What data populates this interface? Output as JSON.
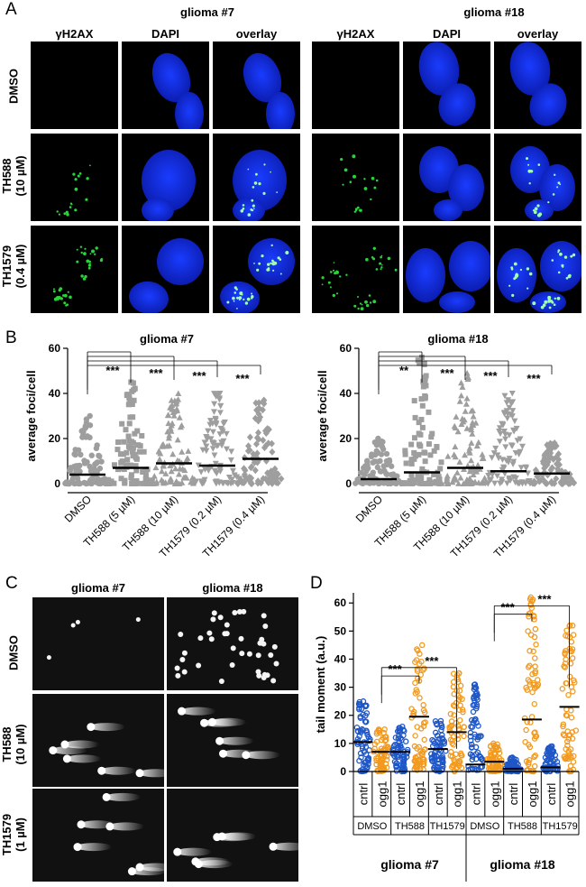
{
  "panel_a": {
    "letter": "A",
    "groups": [
      "glioma #7",
      "glioma #18"
    ],
    "columns": [
      "γH2AX",
      "DAPI",
      "overlay"
    ],
    "rows": [
      {
        "line1": "DMSO",
        "line2": ""
      },
      {
        "line1": "TH588",
        "line2": "(10 µM)"
      },
      {
        "line1": "TH1579",
        "line2": "(0.4 µM)"
      }
    ]
  },
  "panel_b": {
    "letter": "B",
    "charts": [
      {
        "title": "glioma #7",
        "ylabel": "average foci/cell",
        "yticks": [
          "0",
          "20",
          "40",
          "60"
        ],
        "categories": [
          "DMSO",
          "TH588 (5 µM)",
          "TH588 (10 µM)",
          "TH1579 (0.2 µM)",
          "TH1579 (0.4 µM)"
        ],
        "significance": [
          "***",
          "***",
          "***",
          "***"
        ]
      },
      {
        "title": "glioma #18",
        "ylabel": "average foci/cell",
        "yticks": [
          "0",
          "20",
          "40",
          "60"
        ],
        "categories": [
          "DMSO",
          "TH588 (5 µM)",
          "TH588 (10 µM)",
          "TH1579 (0.2 µM)",
          "TH1579 (0.4 µM)"
        ],
        "significance": [
          "**",
          "***",
          "***",
          "***"
        ]
      }
    ]
  },
  "panel_c": {
    "letter": "C",
    "groups": [
      "glioma #7",
      "glioma #18"
    ],
    "rows": [
      {
        "line1": "DMSO",
        "line2": ""
      },
      {
        "line1": "TH588",
        "line2": "(10 µM)"
      },
      {
        "line1": "TH1579",
        "line2": "(1 µM)"
      }
    ]
  },
  "panel_d": {
    "letter": "D",
    "ylabel": "tail moment (a.u.)",
    "yticks": [
      "0",
      "10",
      "20",
      "30",
      "40",
      "50",
      "60"
    ],
    "conditions": [
      "cntrl",
      "ogg1",
      "cntrl",
      "ogg1",
      "cntrl",
      "ogg1",
      "cntrl",
      "ogg1",
      "cntrl",
      "ogg1",
      "cntrl",
      "ogg1"
    ],
    "treatments": [
      "DMSO",
      "TH588",
      "TH1579",
      "DMSO",
      "TH588",
      "TH1579"
    ],
    "groups": [
      "glioma #7",
      "glioma #18"
    ],
    "significance": [
      "***",
      "***",
      "***",
      "***"
    ]
  },
  "chart_data": [
    {
      "type": "scatter",
      "title": "glioma #7",
      "ylabel": "average foci/cell",
      "ylim": [
        0,
        60
      ],
      "categories": [
        "DMSO",
        "TH588 (5 µM)",
        "TH588 (10 µM)",
        "TH1579 (0.2 µM)",
        "TH1579 (0.4 µM)"
      ],
      "medians": [
        4,
        7,
        9,
        8,
        11
      ],
      "max": [
        30,
        45,
        40,
        40,
        37
      ],
      "colors": [
        "#9e9e9e",
        "#9e9e9e",
        "#9e9e9e",
        "#9e9e9e",
        "#9e9e9e"
      ],
      "markers": [
        "circle",
        "square",
        "triangle-up",
        "triangle-down",
        "diamond"
      ]
    },
    {
      "type": "scatter",
      "title": "glioma #18",
      "ylabel": "average foci/cell",
      "ylim": [
        0,
        60
      ],
      "categories": [
        "DMSO",
        "TH588 (5 µM)",
        "TH588 (10 µM)",
        "TH1579 (0.2 µM)",
        "TH1579 (0.4 µM)"
      ],
      "medians": [
        2,
        5,
        7,
        5.5,
        4.5
      ],
      "max": [
        20,
        56,
        49,
        40,
        18
      ],
      "colors": [
        "#9e9e9e",
        "#9e9e9e",
        "#9e9e9e",
        "#9e9e9e",
        "#9e9e9e"
      ],
      "markers": [
        "circle",
        "square",
        "triangle-up",
        "triangle-down",
        "diamond"
      ]
    },
    {
      "type": "scatter",
      "title": "",
      "ylabel": "tail moment (a.u.)",
      "ylim": [
        0,
        62
      ],
      "categories": [
        "glioma #7 DMSO cntrl",
        "glioma #7 DMSO ogg1",
        "glioma #7 TH588 cntrl",
        "glioma #7 TH588 ogg1",
        "glioma #7 TH1579 cntrl",
        "glioma #7 TH1579 ogg1",
        "glioma #18 DMSO cntrl",
        "glioma #18 DMSO ogg1",
        "glioma #18 TH588 cntrl",
        "glioma #18 TH588 ogg1",
        "glioma #18 TH1579 cntrl",
        "glioma #18 TH1579 ogg1"
      ],
      "medians": [
        10.5,
        7,
        7,
        19.5,
        8,
        14,
        2.5,
        3.5,
        1,
        18.5,
        1.5,
        23
      ],
      "max": [
        25,
        15,
        16,
        45,
        18,
        35,
        31,
        10,
        5,
        62,
        9,
        52
      ],
      "colors": [
        "#1f57c7",
        "#f39a1e",
        "#1f57c7",
        "#f39a1e",
        "#1f57c7",
        "#f39a1e",
        "#1f57c7",
        "#f39a1e",
        "#1f57c7",
        "#f39a1e",
        "#1f57c7",
        "#f39a1e"
      ],
      "markers": [
        "circle",
        "circle",
        "circle",
        "circle",
        "circle",
        "circle",
        "circle",
        "circle",
        "circle",
        "circle",
        "circle",
        "circle"
      ]
    }
  ]
}
